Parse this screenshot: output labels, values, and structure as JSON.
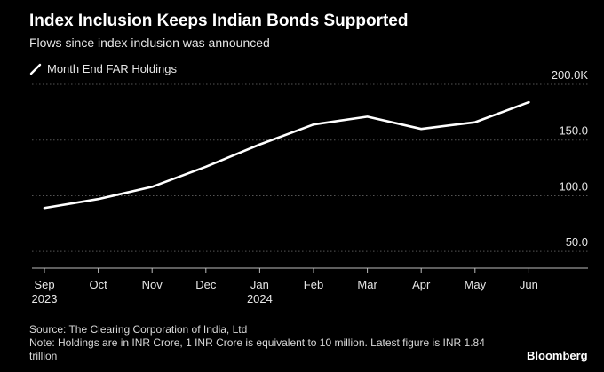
{
  "colors": {
    "background": "#000000",
    "line": "#ffffff",
    "grid": "#555555",
    "text": "#e6e6e6"
  },
  "legend_icon": "diagonal-line-icon",
  "source": "Source: The Clearing Corporation of India, Ltd",
  "note": "Note: Holdings are in INR Crore, 1 INR Crore is equivalent to 10 million. Latest figure is INR 1.84 trillion",
  "brand": "Bloomberg",
  "chart_data": {
    "type": "line",
    "title": "Index Inclusion Keeps Indian Bonds Supported",
    "subtitle": "Flows since index inclusion was announced",
    "categories": [
      "Sep\n2023",
      "Oct",
      "Nov",
      "Dec",
      "Jan\n2024",
      "Feb",
      "Mar",
      "Apr",
      "May",
      "Jun"
    ],
    "series": [
      {
        "name": "Month End FAR Holdings",
        "values": [
          89,
          97,
          108,
          126,
          146,
          164,
          171,
          160,
          166,
          184
        ]
      }
    ],
    "yticks": [
      50,
      100,
      150,
      200
    ],
    "ytick_labels": [
      "50.0",
      "100.0",
      "150.0",
      "200.0K"
    ],
    "ylim": [
      35,
      200
    ],
    "xlabel": "",
    "ylabel": "",
    "grid": true,
    "legend": "top-left"
  }
}
